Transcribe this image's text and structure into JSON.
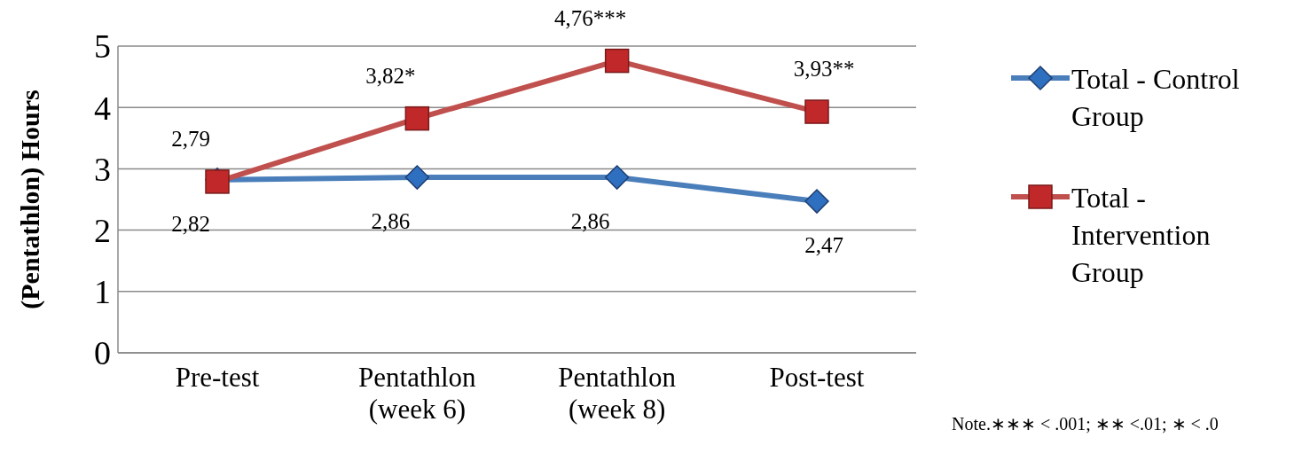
{
  "chart_data": {
    "type": "line",
    "ylabel": "(Pentathlon) Hours",
    "categories": [
      "Pre-test",
      "Pentathlon (week 6)",
      "Pentathlon (week 8)",
      "Post-test"
    ],
    "series": [
      {
        "name": "Total - Control Group",
        "color": "#4a7ebb",
        "marker": "diamond",
        "values": [
          2.82,
          2.86,
          2.86,
          2.47
        ],
        "value_labels": [
          "2,82",
          "2,86",
          "2,86",
          "2,47"
        ]
      },
      {
        "name": "Total - Intervention Group",
        "color": "#c0504d",
        "marker": "square",
        "values": [
          2.79,
          3.82,
          4.76,
          3.93
        ],
        "value_labels": [
          "2,79",
          "3,82*",
          "4,76***",
          "3,93**"
        ]
      }
    ],
    "ylim": [
      0,
      5
    ],
    "yticks": [
      0,
      1,
      2,
      3,
      4,
      5
    ],
    "grid": "y",
    "legend": "right",
    "annotations": [
      "Note.∗∗∗ < .001; ∗∗ <.01; ∗ < .0"
    ]
  }
}
